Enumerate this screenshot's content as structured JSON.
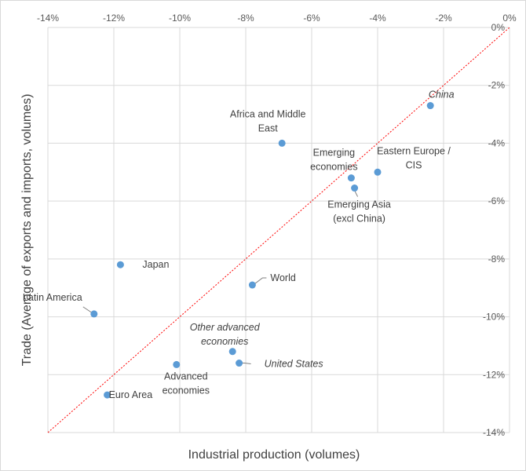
{
  "chart_data": {
    "type": "scatter",
    "title": "",
    "xlabel": "Industrial production (volumes)",
    "ylabel": "Trade (Average of exports and imports, volumes)",
    "xlim": [
      -14,
      0
    ],
    "ylim": [
      -14,
      0
    ],
    "x_ticks": [
      -14,
      -12,
      -10,
      -8,
      -6,
      -4,
      -2,
      0
    ],
    "y_ticks": [
      0,
      -2,
      -4,
      -6,
      -8,
      -10,
      -12,
      -14
    ],
    "x_tick_labels": [
      "-14%",
      "-12%",
      "-10%",
      "-8%",
      "-6%",
      "-4%",
      "-2%",
      "0%"
    ],
    "y_tick_labels": [
      "0%",
      "-2%",
      "-4%",
      "-6%",
      "-8%",
      "-10%",
      "-12%",
      "-14%"
    ],
    "grid": true,
    "marker_color": "#5b9bd5",
    "reference_line": {
      "type": "45-degree",
      "color": "#ff0000",
      "style": "dotted"
    },
    "points": [
      {
        "name": "China",
        "x": -2.4,
        "y": -2.7,
        "italic": true,
        "lines": [
          "China"
        ]
      },
      {
        "name": "Africa and Middle East",
        "x": -6.9,
        "y": -4.0,
        "italic": false,
        "lines": [
          "Africa and Middle",
          "East"
        ]
      },
      {
        "name": "Eastern Europe / CIS",
        "x": -4.0,
        "y": -5.0,
        "italic": false,
        "lines": [
          "Eastern Europe /",
          "CIS"
        ]
      },
      {
        "name": "Emerging economies",
        "x": -4.8,
        "y": -5.2,
        "italic": false,
        "lines": [
          "Emerging",
          "economies"
        ]
      },
      {
        "name": "Emerging Asia (excl China)",
        "x": -4.7,
        "y": -5.55,
        "italic": false,
        "lines": [
          "Emerging Asia",
          "(excl China)"
        ]
      },
      {
        "name": "Japan",
        "x": -11.8,
        "y": -8.2,
        "italic": false,
        "lines": [
          "Japan"
        ]
      },
      {
        "name": "World",
        "x": -7.8,
        "y": -8.9,
        "italic": false,
        "lines": [
          "World"
        ]
      },
      {
        "name": "Latin America",
        "x": -12.6,
        "y": -9.9,
        "italic": false,
        "lines": [
          "Latin America"
        ]
      },
      {
        "name": "Other advanced economies",
        "x": -8.4,
        "y": -11.2,
        "italic": true,
        "lines": [
          "Other advanced",
          "economies"
        ]
      },
      {
        "name": "United States",
        "x": -8.2,
        "y": -11.6,
        "italic": true,
        "lines": [
          "United States"
        ]
      },
      {
        "name": "Advanced economies",
        "x": -10.1,
        "y": -11.65,
        "italic": false,
        "lines": [
          "Advanced",
          "economies"
        ]
      },
      {
        "name": "Euro Area",
        "x": -12.2,
        "y": -12.7,
        "italic": false,
        "lines": [
          "Euro Area"
        ]
      }
    ]
  }
}
